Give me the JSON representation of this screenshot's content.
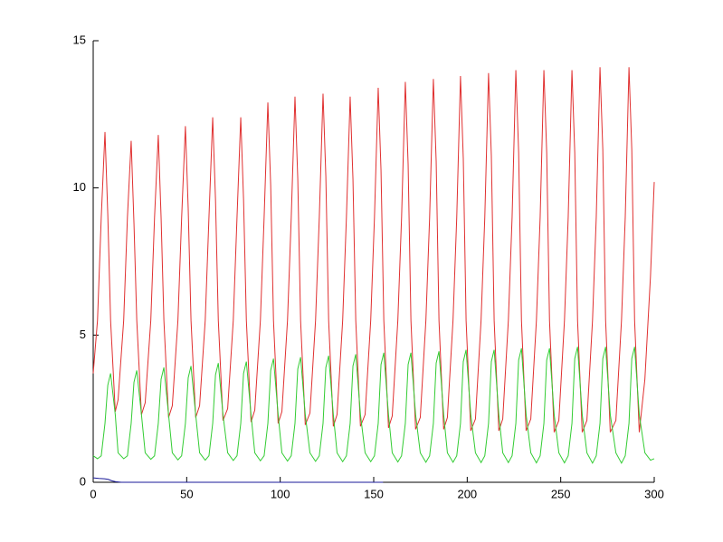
{
  "chart_data": {
    "type": "line",
    "x": [
      0,
      2.3,
      4.3,
      6.3,
      7.8,
      9.3,
      11.8,
      13.3,
      16.3,
      18.3,
      20.3,
      21.8,
      23.3,
      25.8,
      27.8,
      30.8,
      32.8,
      34.8,
      36.3,
      37.8,
      40.3,
      42.3,
      45.3,
      47.3,
      49.3,
      50.8,
      52.3,
      54.8,
      56.9,
      59.9,
      61.9,
      63.9,
      65.4,
      66.9,
      69.4,
      71.9,
      74.9,
      76.9,
      78.9,
      80.4,
      81.9,
      84.4,
      86.4,
      89.4,
      91.4,
      93.4,
      94.9,
      96.4,
      98.9,
      100.9,
      103.9,
      105.9,
      107.9,
      109.4,
      110.9,
      113.4,
      115.9,
      118.9,
      120.9,
      122.9,
      124.4,
      125.9,
      128.4,
      130.4,
      133.4,
      135.4,
      137.4,
      138.9,
      140.4,
      142.9,
      145.4,
      148.4,
      150.4,
      152.4,
      153.9,
      155.4,
      157.9,
      159.9,
      162.9,
      164.9,
      166.9,
      168.4,
      169.9,
      172.4,
      174.9,
      177.9,
      179.9,
      181.9,
      183.4,
      184.9,
      187.4,
      189.4,
      192.4,
      194.4,
      196.4,
      197.9,
      199.4,
      201.9,
      204.4,
      207.4,
      209.4,
      211.4,
      212.9,
      214.4,
      216.9,
      219,
      222,
      224,
      226,
      227.5,
      229,
      231.5,
      234,
      237,
      239,
      241,
      242.5,
      244,
      246.5,
      249,
      252,
      254,
      256,
      257.5,
      259,
      261.5,
      264,
      267,
      269,
      271,
      272.5,
      274,
      276.5,
      279.5,
      282.5,
      284.5,
      286.5,
      288,
      289.5,
      292,
      295,
      298,
      300
    ],
    "series": [
      {
        "color": "#e03030",
        "values": [
          3.7,
          5.5,
          9.0,
          11.9,
          9.1,
          5.5,
          2.4,
          2.8,
          5.5,
          9.0,
          11.6,
          8.8,
          5.5,
          2.3,
          2.7,
          5.5,
          9.0,
          11.8,
          9.0,
          5.5,
          2.2,
          2.6,
          5.5,
          9.0,
          12.1,
          9.3,
          5.5,
          2.2,
          2.6,
          5.5,
          9.0,
          12.4,
          9.6,
          5.5,
          2.1,
          2.5,
          5.5,
          9.0,
          12.4,
          9.6,
          5.5,
          2.05,
          2.45,
          5.5,
          9.0,
          12.9,
          10.1,
          5.5,
          2.0,
          2.4,
          5.5,
          9.0,
          13.1,
          10.3,
          5.5,
          1.95,
          2.35,
          5.5,
          9.0,
          13.2,
          10.4,
          5.5,
          1.9,
          2.3,
          5.5,
          9.0,
          13.1,
          10.3,
          5.5,
          1.9,
          2.3,
          5.5,
          9.0,
          13.4,
          10.6,
          5.5,
          1.85,
          2.25,
          5.5,
          9.0,
          13.6,
          10.8,
          5.5,
          1.8,
          2.2,
          5.5,
          9.0,
          13.7,
          10.9,
          5.5,
          1.8,
          2.2,
          5.5,
          9.0,
          13.8,
          11.0,
          5.5,
          1.75,
          2.15,
          5.5,
          9.0,
          13.9,
          11.1,
          5.5,
          1.75,
          2.15,
          5.5,
          9.0,
          14.0,
          11.2,
          5.5,
          1.75,
          2.15,
          5.5,
          9.0,
          14.0,
          11.2,
          5.5,
          1.7,
          2.1,
          5.5,
          9.0,
          14.0,
          11.2,
          5.5,
          1.7,
          2.1,
          5.5,
          9.0,
          14.1,
          11.3,
          5.5,
          1.7,
          2.1,
          5.5,
          9.0,
          14.1,
          11.3,
          5.5,
          1.7,
          3.5,
          7.0,
          10.2
        ]
      },
      {
        "color": "#33cc33",
        "values": [
          0.9,
          0.8,
          0.9,
          2.0,
          3.3,
          3.7,
          2.3,
          1.0,
          0.8,
          0.9,
          2.0,
          3.4,
          3.8,
          2.3,
          1.0,
          0.78,
          0.9,
          2.0,
          3.5,
          3.9,
          2.3,
          1.0,
          0.76,
          0.9,
          2.0,
          3.55,
          3.95,
          2.3,
          1.0,
          0.75,
          0.9,
          2.0,
          3.65,
          4.05,
          2.3,
          1.0,
          0.74,
          0.9,
          2.0,
          3.7,
          4.1,
          2.3,
          1.0,
          0.73,
          0.9,
          2.0,
          3.8,
          4.2,
          2.3,
          1.0,
          0.72,
          0.9,
          2.0,
          3.85,
          4.25,
          2.3,
          1.0,
          0.71,
          0.9,
          2.0,
          3.9,
          4.3,
          2.3,
          1.0,
          0.7,
          0.9,
          2.0,
          3.95,
          4.35,
          2.3,
          1.0,
          0.7,
          0.9,
          2.0,
          4.0,
          4.4,
          2.3,
          1.0,
          0.69,
          0.9,
          2.0,
          4.0,
          4.4,
          2.3,
          1.0,
          0.68,
          0.9,
          2.0,
          4.05,
          4.45,
          2.3,
          1.0,
          0.68,
          0.9,
          2.0,
          4.1,
          4.5,
          2.3,
          1.0,
          0.67,
          0.9,
          2.0,
          4.1,
          4.5,
          2.3,
          1.0,
          0.67,
          0.9,
          2.0,
          4.15,
          4.55,
          2.3,
          1.0,
          0.66,
          0.9,
          2.0,
          4.15,
          4.55,
          2.3,
          1.0,
          0.66,
          0.9,
          2.0,
          4.2,
          4.6,
          2.3,
          1.0,
          0.65,
          0.9,
          2.0,
          4.2,
          4.6,
          2.3,
          1.0,
          0.65,
          0.9,
          2.0,
          4.2,
          4.6,
          2.3,
          1.0,
          0.75,
          0.8
        ]
      },
      {
        "color": "#1a1a99",
        "x": [
          0,
          3,
          6,
          8,
          10,
          12,
          15,
          155
        ],
        "values": [
          0.15,
          0.13,
          0.12,
          0.1,
          0.05,
          0.02,
          0,
          0
        ]
      }
    ],
    "xlim": [
      0,
      300
    ],
    "xticks": [
      0,
      50,
      100,
      150,
      200,
      250,
      300
    ],
    "ylim": [
      0,
      15
    ],
    "yticks": [
      0,
      5,
      10,
      15
    ]
  }
}
